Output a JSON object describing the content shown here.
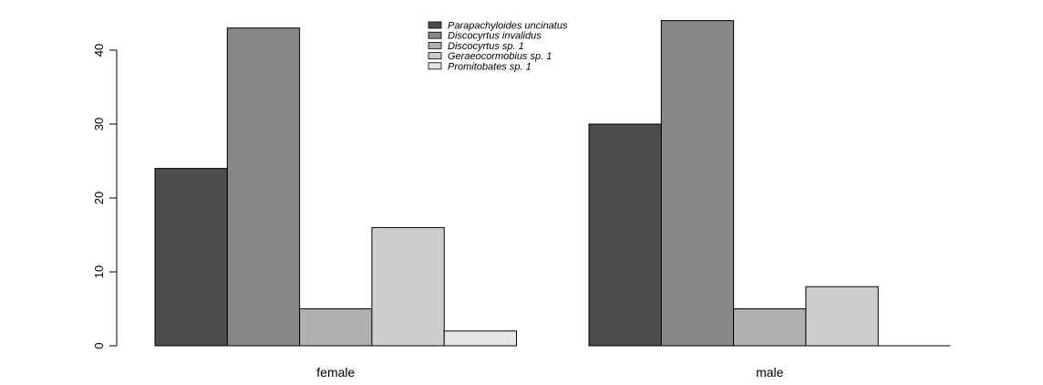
{
  "chart_data": {
    "type": "bar",
    "categories": [
      "female",
      "male"
    ],
    "series": [
      {
        "name": "Parapachyloides uncinatus",
        "values": [
          24,
          30
        ],
        "color": "#4d4d4d"
      },
      {
        "name": "Discocyrtus invalidus",
        "values": [
          43,
          44
        ],
        "color": "#878787"
      },
      {
        "name": "Discocyrtus sp. 1",
        "values": [
          5,
          5
        ],
        "color": "#b0b0b0"
      },
      {
        "name": "Geraeocormobius sp. 1",
        "values": [
          16,
          8
        ],
        "color": "#cdcdcd"
      },
      {
        "name": "Promitobates sp. 1",
        "values": [
          2,
          0
        ],
        "color": "#e6e6e6"
      }
    ],
    "yticks": [
      "0",
      "10",
      "20",
      "30",
      "40"
    ],
    "ylim": [
      0,
      44
    ],
    "grid": false,
    "legend_position": "top-center"
  }
}
